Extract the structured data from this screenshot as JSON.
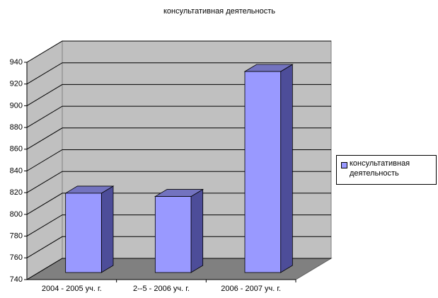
{
  "chart_data": {
    "type": "bar3d",
    "title": "консультативная деятельность",
    "categories": [
      "2004 - 2005 уч. г.",
      "2--5 - 2006 уч. г.",
      "2006 - 2007 уч. г."
    ],
    "series": [
      {
        "name": "консультативная деятельность",
        "color": "#9999ff",
        "values": [
          813,
          810,
          925
        ]
      }
    ],
    "ylim": [
      740,
      940
    ],
    "yticks": [
      740,
      760,
      780,
      800,
      820,
      840,
      860,
      880,
      900,
      920,
      940
    ],
    "grid": true,
    "legend": "right"
  }
}
